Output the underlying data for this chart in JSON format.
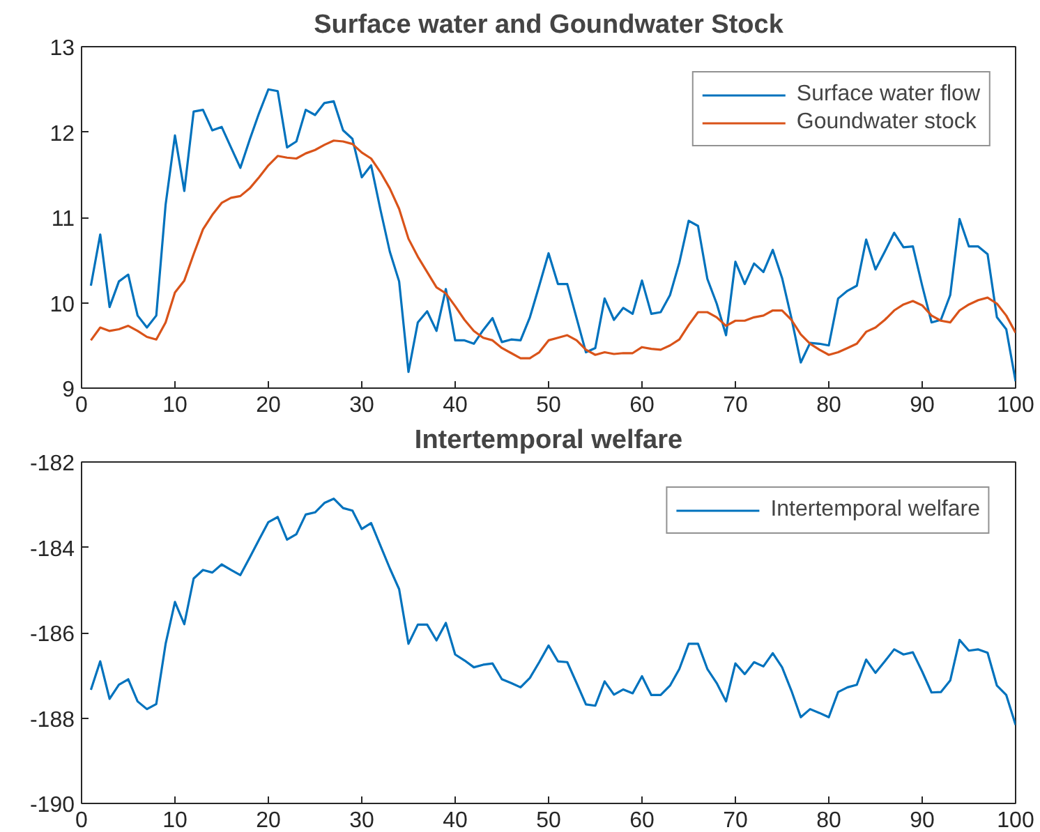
{
  "chart_data": [
    {
      "type": "line",
      "title": "Surface water and Goundwater Stock",
      "x": [
        1,
        2,
        3,
        4,
        5,
        6,
        7,
        8,
        9,
        10,
        11,
        12,
        13,
        14,
        15,
        16,
        17,
        18,
        19,
        20,
        21,
        22,
        23,
        24,
        25,
        26,
        27,
        28,
        29,
        30,
        31,
        32,
        33,
        34,
        35,
        36,
        37,
        38,
        39,
        40,
        41,
        42,
        43,
        44,
        45,
        46,
        47,
        48,
        49,
        50,
        51,
        52,
        53,
        54,
        55,
        56,
        57,
        58,
        59,
        60,
        61,
        62,
        63,
        64,
        65,
        66,
        67,
        68,
        69,
        70,
        71,
        72,
        73,
        74,
        75,
        76,
        77,
        78,
        79,
        80,
        81,
        82,
        83,
        84,
        85,
        86,
        87,
        88,
        89,
        90,
        91,
        92,
        93,
        94,
        95,
        96,
        97,
        98,
        99,
        100
      ],
      "series": [
        {
          "name": "Surface water flow",
          "color": "#0072bd",
          "values": [
            10.2,
            10.8,
            9.95,
            10.25,
            10.33,
            9.85,
            9.71,
            9.85,
            11.15,
            11.96,
            11.31,
            12.24,
            12.26,
            12.02,
            12.06,
            11.82,
            11.58,
            11.91,
            12.22,
            12.5,
            12.48,
            11.82,
            11.89,
            12.26,
            12.2,
            12.34,
            12.36,
            12.02,
            11.92,
            11.47,
            11.61,
            11.09,
            10.6,
            10.25,
            9.19,
            9.77,
            9.9,
            9.67,
            10.16,
            9.56,
            9.56,
            9.52,
            9.68,
            9.82,
            9.54,
            9.57,
            9.56,
            9.83,
            10.2,
            10.58,
            10.22,
            10.22,
            9.82,
            9.42,
            9.47,
            10.05,
            9.8,
            9.94,
            9.87,
            10.26,
            9.87,
            9.89,
            10.09,
            10.47,
            10.96,
            10.9,
            10.28,
            9.99,
            9.62,
            10.48,
            10.22,
            10.46,
            10.36,
            10.62,
            10.29,
            9.82,
            9.3,
            9.53,
            9.52,
            9.5,
            10.05,
            10.14,
            10.2,
            10.74,
            10.39,
            10.6,
            10.82,
            10.65,
            10.66,
            10.2,
            9.77,
            9.8,
            10.09,
            10.98,
            10.66,
            10.66,
            10.57,
            9.83,
            9.69,
            9.08
          ]
        },
        {
          "name": "Goundwater stock",
          "color": "#d95319",
          "values": [
            9.56,
            9.71,
            9.67,
            9.69,
            9.73,
            9.67,
            9.6,
            9.57,
            9.77,
            10.12,
            10.26,
            10.57,
            10.86,
            11.03,
            11.17,
            11.23,
            11.25,
            11.34,
            11.47,
            11.61,
            11.72,
            11.7,
            11.69,
            11.75,
            11.79,
            11.85,
            11.9,
            11.89,
            11.86,
            11.76,
            11.69,
            11.53,
            11.34,
            11.1,
            10.75,
            10.54,
            10.36,
            10.18,
            10.11,
            9.96,
            9.8,
            9.67,
            9.59,
            9.56,
            9.47,
            9.41,
            9.35,
            9.35,
            9.42,
            9.56,
            9.59,
            9.62,
            9.56,
            9.45,
            9.39,
            9.42,
            9.4,
            9.41,
            9.41,
            9.48,
            9.46,
            9.45,
            9.5,
            9.57,
            9.74,
            9.89,
            9.89,
            9.83,
            9.73,
            9.79,
            9.79,
            9.83,
            9.85,
            9.91,
            9.91,
            9.8,
            9.63,
            9.52,
            9.45,
            9.39,
            9.42,
            9.47,
            9.52,
            9.66,
            9.71,
            9.8,
            9.91,
            9.98,
            10.02,
            9.97,
            9.85,
            9.79,
            9.77,
            9.91,
            9.98,
            10.03,
            10.06,
            9.99,
            9.85,
            9.65
          ]
        }
      ],
      "xlim": [
        0,
        100
      ],
      "xticks": [
        0,
        10,
        20,
        30,
        40,
        50,
        60,
        70,
        80,
        90,
        100
      ],
      "ylim": [
        9,
        13
      ],
      "yticks": [
        9,
        10,
        11,
        12,
        13
      ],
      "legend": "top right",
      "line_style": "solid"
    },
    {
      "type": "line",
      "title": "Intertemporal welfare",
      "x": [
        1,
        2,
        3,
        4,
        5,
        6,
        7,
        8,
        9,
        10,
        11,
        12,
        13,
        14,
        15,
        16,
        17,
        18,
        19,
        20,
        21,
        22,
        23,
        24,
        25,
        26,
        27,
        28,
        29,
        30,
        31,
        32,
        33,
        34,
        35,
        36,
        37,
        38,
        39,
        40,
        41,
        42,
        43,
        44,
        45,
        46,
        47,
        48,
        49,
        50,
        51,
        52,
        53,
        54,
        55,
        56,
        57,
        58,
        59,
        60,
        61,
        62,
        63,
        64,
        65,
        66,
        67,
        68,
        69,
        70,
        71,
        72,
        73,
        74,
        75,
        76,
        77,
        78,
        79,
        80,
        81,
        82,
        83,
        84,
        85,
        86,
        87,
        88,
        89,
        90,
        91,
        92,
        93,
        94,
        95,
        96,
        97,
        98,
        99,
        100
      ],
      "series": [
        {
          "name": "Intertemporal welfare",
          "color": "#0072bd",
          "values": [
            -187.34,
            -186.67,
            -187.55,
            -187.22,
            -187.09,
            -187.61,
            -187.79,
            -187.67,
            -186.26,
            -185.28,
            -185.8,
            -184.73,
            -184.53,
            -184.59,
            -184.4,
            -184.53,
            -184.65,
            -184.24,
            -183.82,
            -183.41,
            -183.29,
            -183.82,
            -183.69,
            -183.23,
            -183.18,
            -182.96,
            -182.86,
            -183.08,
            -183.14,
            -183.57,
            -183.43,
            -183.96,
            -184.49,
            -184.98,
            -186.26,
            -185.81,
            -185.81,
            -186.18,
            -185.77,
            -186.51,
            -186.65,
            -186.81,
            -186.75,
            -186.72,
            -187.09,
            -187.18,
            -187.28,
            -187.06,
            -186.69,
            -186.3,
            -186.67,
            -186.69,
            -187.18,
            -187.68,
            -187.71,
            -187.14,
            -187.45,
            -187.33,
            -187.42,
            -187.02,
            -187.46,
            -187.46,
            -187.24,
            -186.85,
            -186.26,
            -186.26,
            -186.85,
            -187.18,
            -187.61,
            -186.72,
            -186.97,
            -186.69,
            -186.79,
            -186.48,
            -186.81,
            -187.36,
            -187.98,
            -187.79,
            -187.88,
            -187.98,
            -187.39,
            -187.28,
            -187.22,
            -186.63,
            -186.94,
            -186.67,
            -186.39,
            -186.51,
            -186.46,
            -186.91,
            -187.4,
            -187.39,
            -187.12,
            -186.17,
            -186.42,
            -186.39,
            -186.47,
            -187.24,
            -187.46,
            -188.16
          ]
        }
      ],
      "xlim": [
        0,
        100
      ],
      "xticks": [
        0,
        10,
        20,
        30,
        40,
        50,
        60,
        70,
        80,
        90,
        100
      ],
      "ylim": [
        -190,
        -182
      ],
      "yticks": [
        -190,
        -188,
        -186,
        -184,
        -182
      ],
      "legend": "top right",
      "line_style": "solid"
    }
  ]
}
